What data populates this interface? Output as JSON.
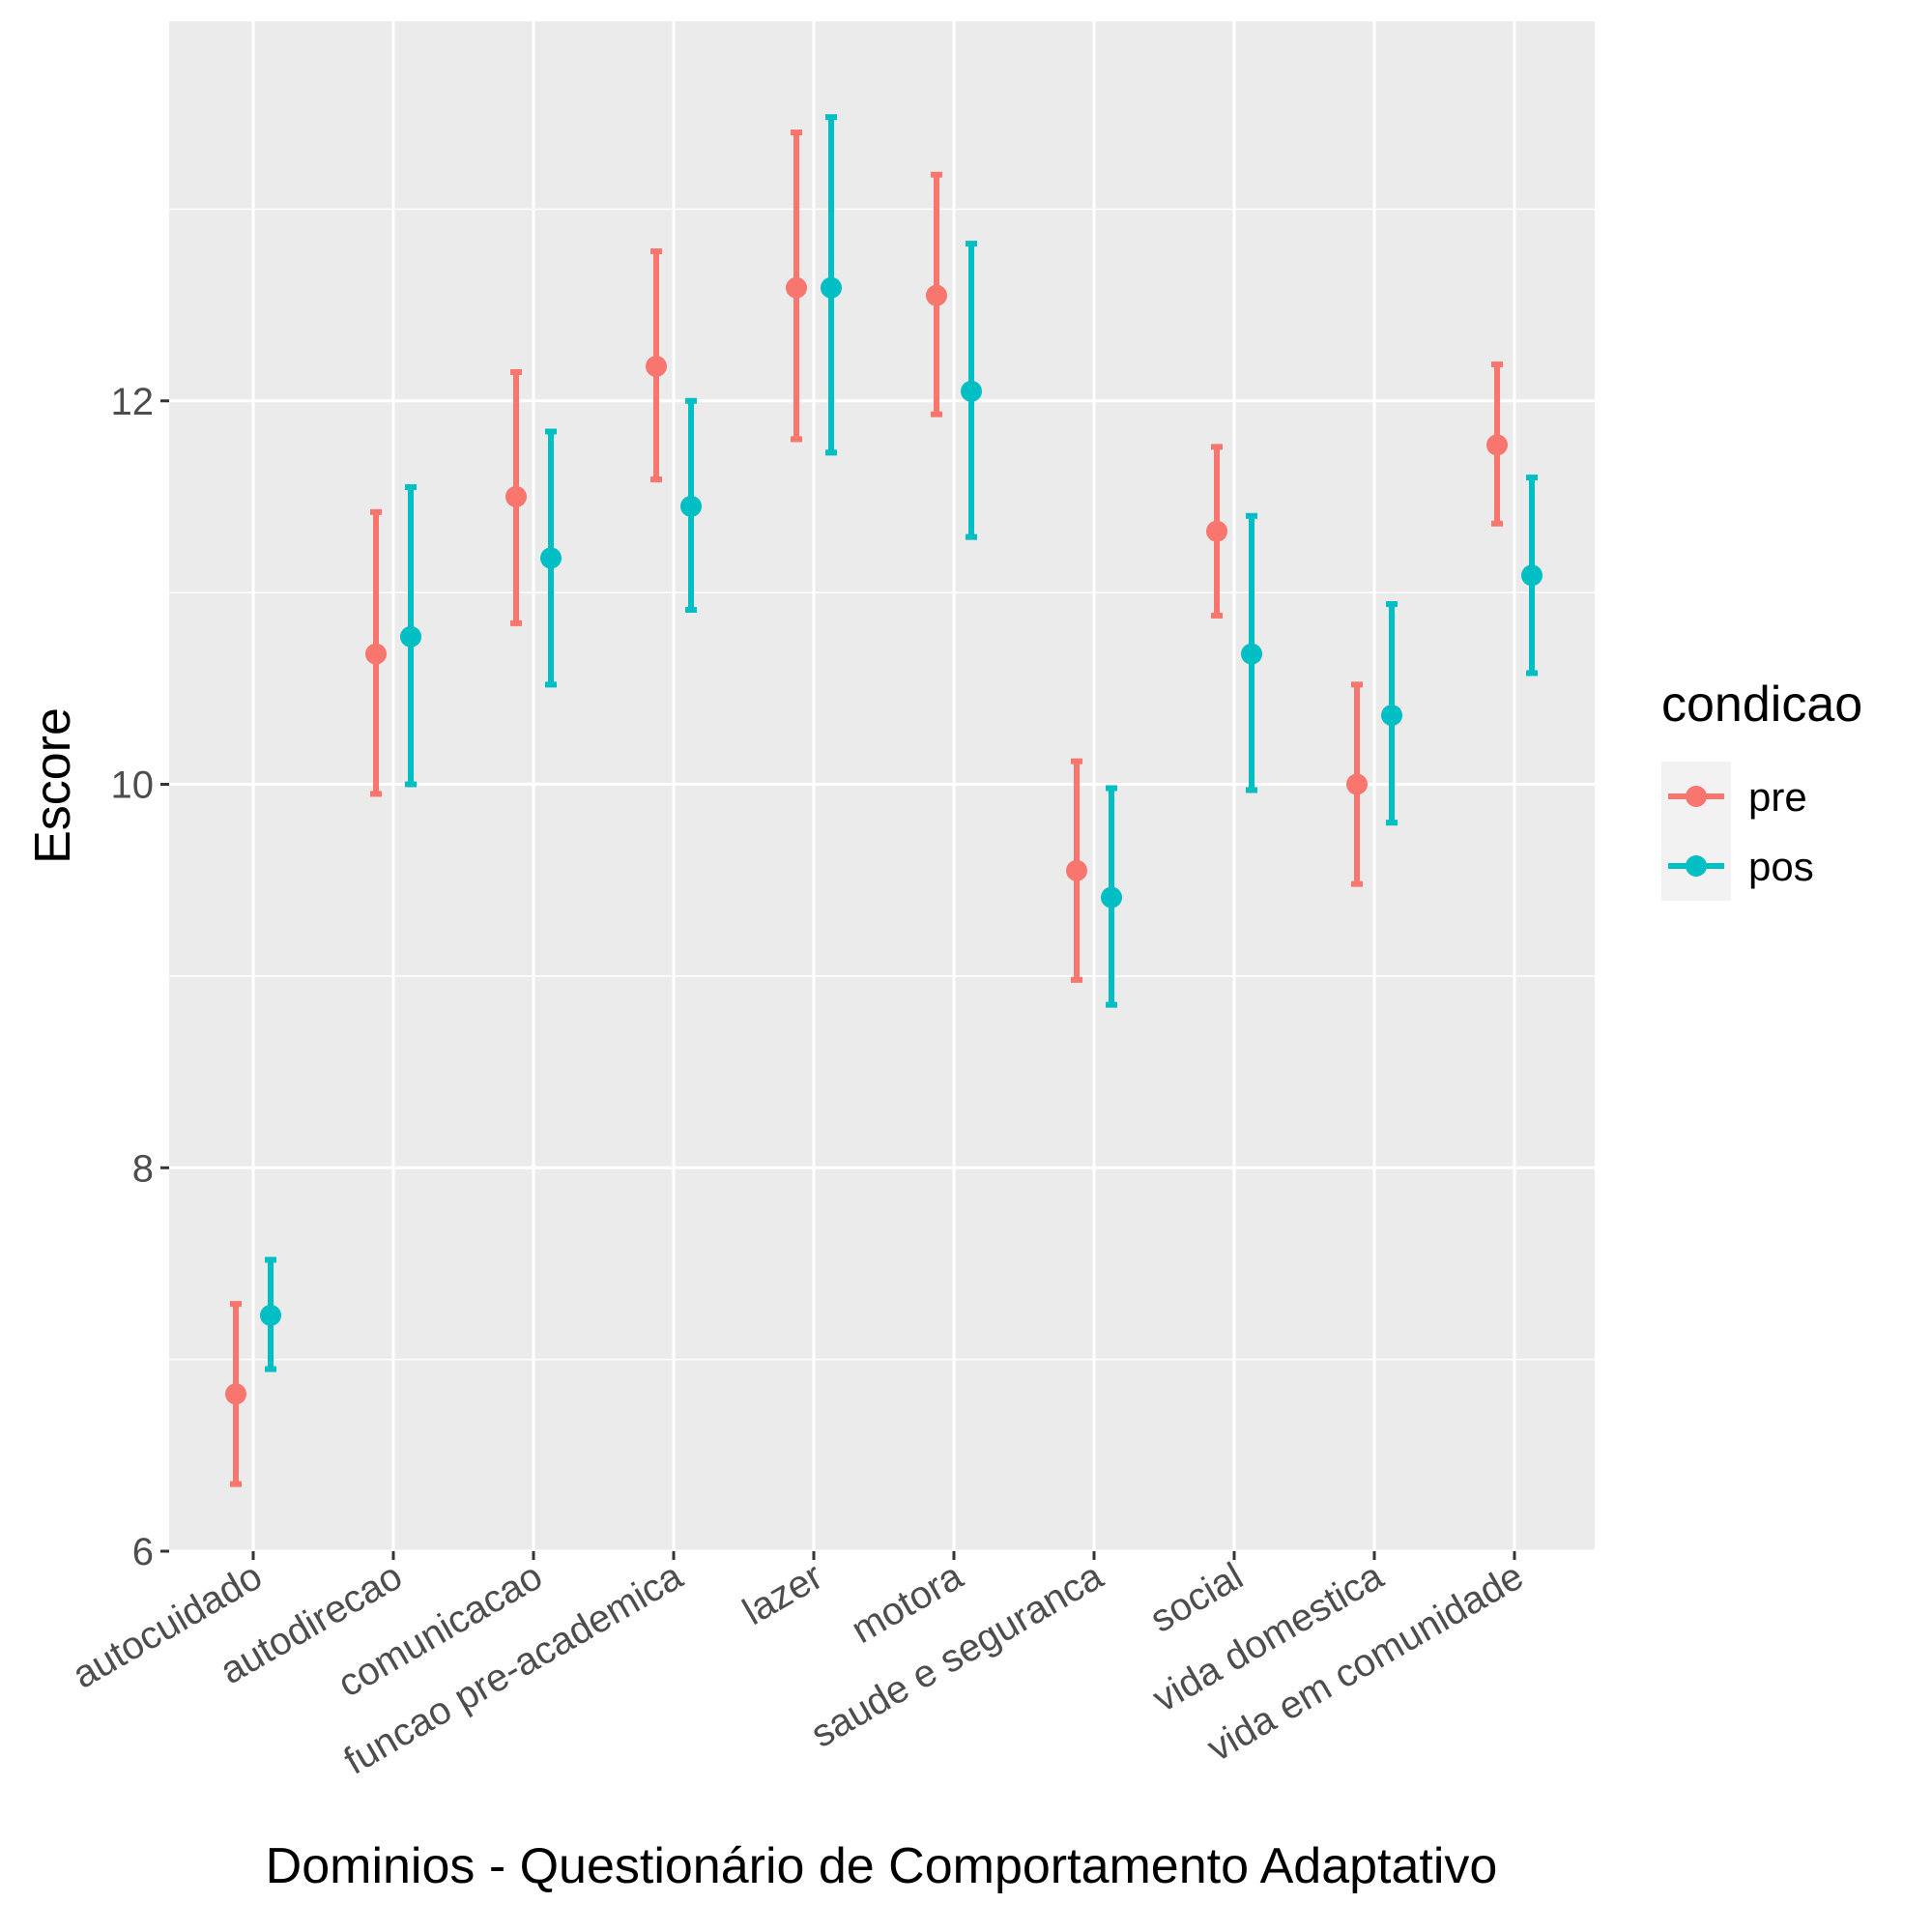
{
  "chart_data": {
    "type": "errorbar",
    "xlabel": "Dominios - Questionário de Comportamento Adaptativo",
    "ylabel": "Escore",
    "ylim": [
      6,
      13.98
    ],
    "yticks": [
      6,
      8,
      10,
      12
    ],
    "grid": true,
    "legend": {
      "title": "condicao",
      "position": "right",
      "entries": [
        "pre",
        "pos"
      ]
    },
    "categories": [
      "autocuidado",
      "autodirecao",
      "comunicacao",
      "funcao pre-academica",
      "lazer",
      "motora",
      "saude e seguranca",
      "social",
      "vida domestica",
      "vida em comunidade"
    ],
    "series": [
      {
        "name": "pre",
        "color": "#F8766D",
        "mean": [
          6.82,
          10.68,
          11.5,
          12.18,
          12.59,
          12.55,
          9.55,
          11.32,
          10.0,
          11.77
        ],
        "lower": [
          6.35,
          9.95,
          10.84,
          11.59,
          11.8,
          11.93,
          8.98,
          10.88,
          9.48,
          11.36
        ],
        "upper": [
          7.29,
          11.42,
          12.15,
          12.78,
          13.4,
          13.18,
          10.12,
          11.76,
          10.52,
          12.19
        ]
      },
      {
        "name": "pos",
        "color": "#00BFC4",
        "mean": [
          7.23,
          10.77,
          11.18,
          11.45,
          12.59,
          12.05,
          9.41,
          10.68,
          10.36,
          11.09
        ],
        "lower": [
          6.95,
          10.0,
          10.52,
          10.91,
          11.73,
          11.29,
          8.85,
          9.97,
          9.8,
          10.58
        ],
        "upper": [
          7.52,
          11.55,
          11.84,
          12.0,
          13.48,
          12.82,
          9.98,
          11.4,
          10.94,
          11.6
        ]
      }
    ]
  }
}
